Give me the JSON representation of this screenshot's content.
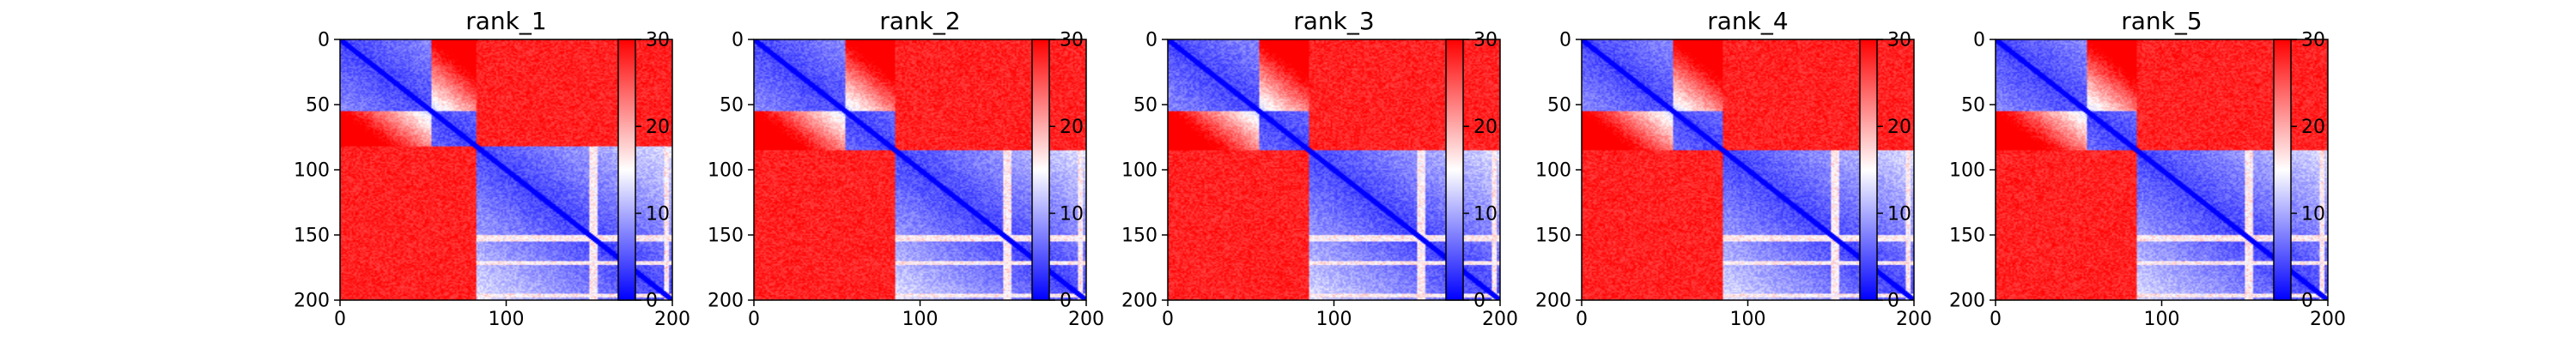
{
  "chart_data": [
    {
      "type": "heatmap",
      "title": "rank_1",
      "xlim": [
        0,
        200
      ],
      "ylim": [
        200,
        0
      ],
      "x_ticks": [
        0,
        100,
        200
      ],
      "y_ticks": [
        0,
        50,
        100,
        150,
        200
      ],
      "n": 200,
      "colorbar": {
        "range": [
          0,
          30
        ],
        "ticks": [
          0,
          10,
          20,
          30
        ],
        "colors": [
          "#0000ff",
          "#ffffff",
          "#ff0000"
        ]
      },
      "domains": {
        "d1_end": 55,
        "d2_end": 82,
        "d3_end": 200
      },
      "d1_d3_boundary": 95
    },
    {
      "type": "heatmap",
      "title": "rank_2",
      "xlim": [
        0,
        200
      ],
      "ylim": [
        200,
        0
      ],
      "x_ticks": [
        0,
        100,
        200
      ],
      "y_ticks": [
        0,
        50,
        100,
        150,
        200
      ],
      "n": 200,
      "colorbar": {
        "range": [
          0,
          30
        ],
        "ticks": [
          0,
          10,
          20,
          30
        ],
        "colors": [
          "#0000ff",
          "#ffffff",
          "#ff0000"
        ]
      },
      "domains": {
        "d1_end": 55,
        "d2_end": 85,
        "d3_end": 200
      },
      "d1_d3_boundary": 95
    },
    {
      "type": "heatmap",
      "title": "rank_3",
      "xlim": [
        0,
        200
      ],
      "ylim": [
        200,
        0
      ],
      "x_ticks": [
        0,
        100,
        200
      ],
      "y_ticks": [
        0,
        50,
        100,
        150,
        200
      ],
      "n": 200,
      "colorbar": {
        "range": [
          0,
          30
        ],
        "ticks": [
          0,
          10,
          20,
          30
        ],
        "colors": [
          "#0000ff",
          "#ffffff",
          "#ff0000"
        ]
      },
      "domains": {
        "d1_end": 55,
        "d2_end": 85,
        "d3_end": 200
      },
      "d1_d3_boundary": 95
    },
    {
      "type": "heatmap",
      "title": "rank_4",
      "xlim": [
        0,
        200
      ],
      "ylim": [
        200,
        0
      ],
      "x_ticks": [
        0,
        100,
        200
      ],
      "y_ticks": [
        0,
        50,
        100,
        150,
        200
      ],
      "n": 200,
      "colorbar": {
        "range": [
          0,
          30
        ],
        "ticks": [
          0,
          10,
          20,
          30
        ],
        "colors": [
          "#0000ff",
          "#ffffff",
          "#ff0000"
        ]
      },
      "domains": {
        "d1_end": 55,
        "d2_end": 85,
        "d3_end": 200
      },
      "d1_d3_boundary": 95
    },
    {
      "type": "heatmap",
      "title": "rank_5",
      "xlim": [
        0,
        200
      ],
      "ylim": [
        200,
        0
      ],
      "x_ticks": [
        0,
        100,
        200
      ],
      "y_ticks": [
        0,
        50,
        100,
        150,
        200
      ],
      "n": 200,
      "colorbar": {
        "range": [
          0,
          30
        ],
        "ticks": [
          0,
          10,
          20,
          30
        ],
        "colors": [
          "#0000ff",
          "#ffffff",
          "#ff0000"
        ]
      },
      "domains": {
        "d1_end": 55,
        "d2_end": 85,
        "d3_end": 200
      },
      "d1_d3_boundary": 95
    }
  ]
}
